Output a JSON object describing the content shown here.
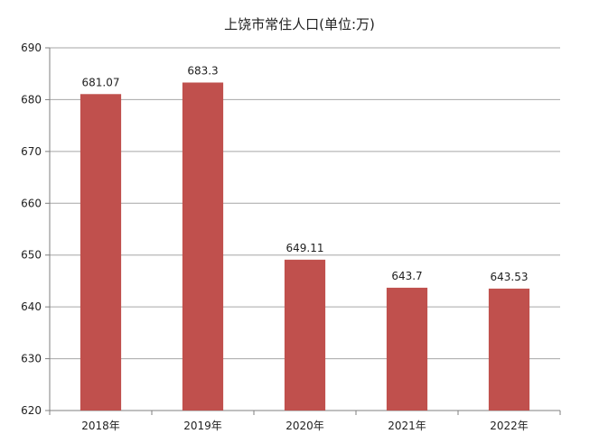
{
  "chart_data": {
    "type": "bar",
    "title": "上饶市常住人口(单位:万)",
    "categories": [
      "2018年",
      "2019年",
      "2020年",
      "2021年",
      "2022年"
    ],
    "series": [
      {
        "values": [
          681.07,
          683.3,
          649.11,
          643.7,
          643.53
        ],
        "color": "#c0504d"
      }
    ],
    "data_labels": [
      "681.07",
      "683.3",
      "649.11",
      "643.7",
      "643.53"
    ],
    "ylim": [
      620,
      690
    ],
    "yticks": [
      620,
      630,
      640,
      650,
      660,
      670,
      680,
      690
    ],
    "grid": true,
    "legend": "none"
  }
}
